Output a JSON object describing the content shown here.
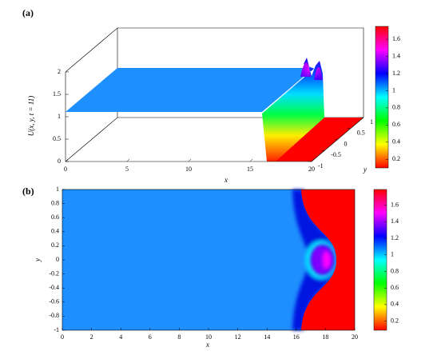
{
  "chart_data": [
    {
      "type": "surface3d",
      "panel_label": "(a)",
      "zlabel": "U(x, y, t = 11)",
      "xlabel": "x",
      "ylabel": "y",
      "xlim": [
        0,
        20
      ],
      "xticks": [
        0,
        5,
        10,
        15,
        20
      ],
      "ylim": [
        -1,
        1
      ],
      "yticks": [
        -1,
        -0.5,
        0,
        0.5,
        1
      ],
      "zlim": [
        0,
        2
      ],
      "zticks": [
        0,
        0.5,
        1,
        1.5,
        2
      ],
      "colormap": "hsv",
      "clim": [
        0.1,
        1.75
      ],
      "cticks": [
        0.2,
        0.4,
        0.6,
        0.8,
        1,
        1.2,
        1.4,
        1.6
      ]
    },
    {
      "type": "heatmap",
      "panel_label": "(b)",
      "xlabel": "x",
      "ylabel": "y",
      "xlim": [
        0,
        20
      ],
      "xticks": [
        0,
        2,
        4,
        6,
        8,
        10,
        12,
        14,
        16,
        18,
        20
      ],
      "ylim": [
        -1,
        1
      ],
      "yticks": [
        -1,
        -0.8,
        -0.6,
        -0.4,
        -0.2,
        0,
        0.2,
        0.4,
        0.6,
        0.8,
        1
      ],
      "colormap": "hsv",
      "clim": [
        0.09,
        1.79
      ],
      "cticks": [
        0.2,
        0.4,
        0.6,
        0.8,
        1,
        1.2,
        1.4,
        1.6
      ]
    }
  ]
}
